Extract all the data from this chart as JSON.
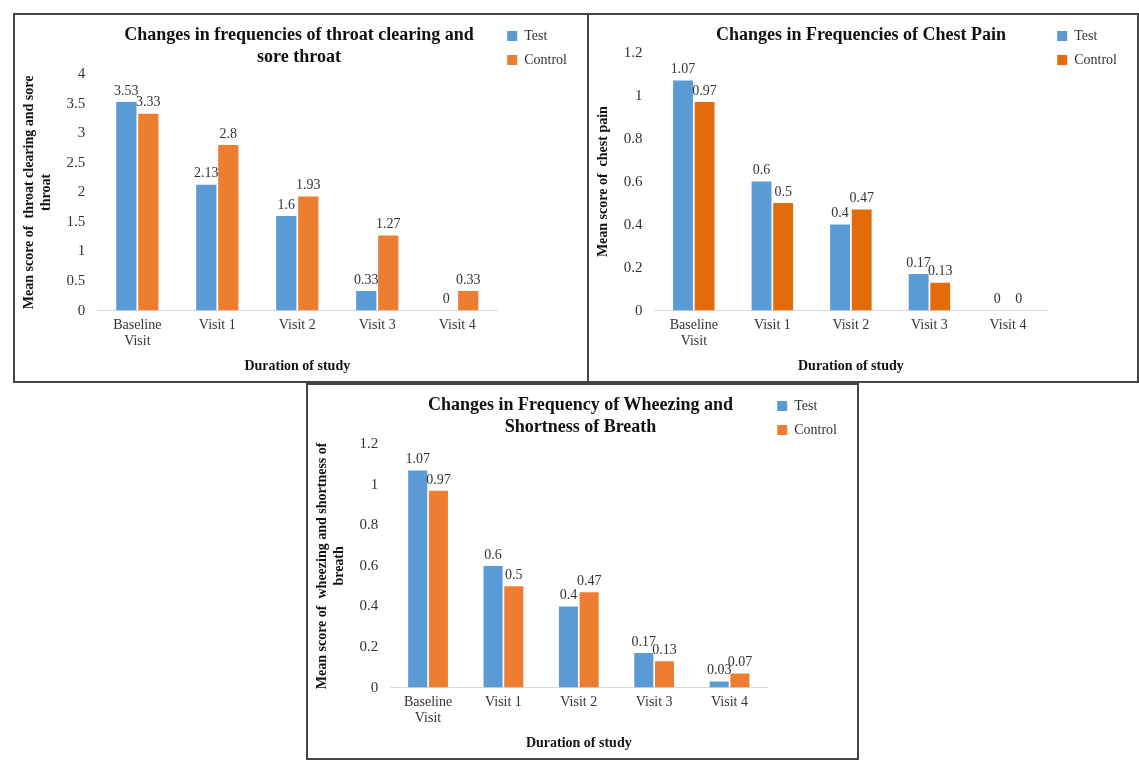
{
  "chart_data": [
    {
      "type": "bar",
      "title": "Changes in frequencies of throat clearing and sore throat",
      "xlabel": "Duration of study",
      "ylabel": "Mean score of  throat clearing and sore throat",
      "categories": [
        "Baseline Visit",
        "Visit 1",
        "Visit 2",
        "Visit 3",
        "Visit 4"
      ],
      "series": [
        {
          "name": "Test",
          "color": "#5b9bd5",
          "values": [
            3.53,
            2.13,
            1.6,
            0.33,
            0
          ]
        },
        {
          "name": "Control",
          "color": "#ed7d31",
          "values": [
            3.33,
            2.8,
            1.93,
            1.27,
            0.33
          ]
        }
      ],
      "ylim": [
        0,
        4
      ],
      "yticks": [
        0,
        0.5,
        1,
        1.5,
        2,
        2.5,
        3,
        3.5,
        4
      ],
      "data_labels": true,
      "legend": "top right"
    },
    {
      "type": "bar",
      "title": "Changes in Frequencies of Chest Pain",
      "xlabel": "Duration of study",
      "ylabel": "Mean score of  chest pain",
      "categories": [
        "Baseline Visit",
        "Visit 1",
        "Visit 2",
        "Visit 3",
        "Visit 4"
      ],
      "series": [
        {
          "name": "Test",
          "color": "#5b9bd5",
          "values": [
            1.07,
            0.6,
            0.4,
            0.17,
            0
          ]
        },
        {
          "name": "Control",
          "color": "#e36c0a",
          "values": [
            0.97,
            0.5,
            0.47,
            0.13,
            0
          ]
        }
      ],
      "ylim": [
        0,
        1.2
      ],
      "yticks": [
        0,
        0.2,
        0.4,
        0.6,
        0.8,
        1,
        1.2
      ],
      "data_labels": true,
      "legend": "top right"
    },
    {
      "type": "bar",
      "title": "Changes in Frequency of Wheezing and Shortness of Breath",
      "xlabel": "Duration of study",
      "ylabel": "Mean score of  wheezing and shortness of breath",
      "categories": [
        "Baseline Visit",
        "Visit 1",
        "Visit 2",
        "Visit 3",
        "Visit 4"
      ],
      "series": [
        {
          "name": "Test",
          "color": "#5b9bd5",
          "values": [
            1.07,
            0.6,
            0.4,
            0.17,
            0.03
          ]
        },
        {
          "name": "Control",
          "color": "#ed7d31",
          "values": [
            0.97,
            0.5,
            0.47,
            0.13,
            0.07
          ]
        }
      ],
      "ylim": [
        0,
        1.2
      ],
      "yticks": [
        0,
        0.2,
        0.4,
        0.6,
        0.8,
        1,
        1.2
      ],
      "data_labels": true,
      "legend": "top right"
    }
  ]
}
